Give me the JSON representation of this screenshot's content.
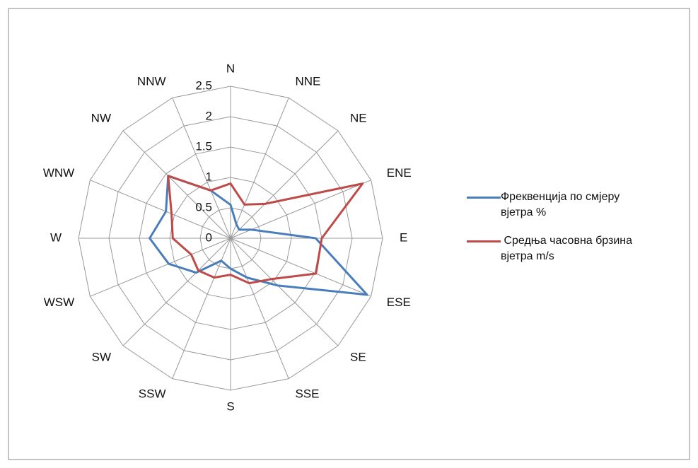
{
  "chart_data": {
    "type": "radar",
    "categories": [
      "N",
      "NNE",
      "NE",
      "ENE",
      "E",
      "ESE",
      "SE",
      "SSE",
      "S",
      "SSW",
      "SW",
      "WSW",
      "W",
      "WNW",
      "NW",
      "NNW"
    ],
    "series": [
      {
        "name": "Фреквенција по смјеру вјетра %",
        "color": "#4a7ebb",
        "values": [
          0.55,
          0.25,
          0.2,
          0.37,
          1.4,
          2.43,
          1.1,
          0.7,
          0.5,
          0.4,
          0.8,
          1.1,
          1.33,
          1.15,
          1.45,
          0.85
        ]
      },
      {
        "name": " Средња часовна брзина вјетра m/s",
        "color": "#be4b48",
        "values": [
          0.9,
          0.6,
          0.8,
          2.35,
          1.5,
          1.52,
          0.95,
          0.8,
          0.6,
          0.7,
          0.75,
          0.7,
          0.95,
          1.05,
          1.45,
          0.85
        ]
      }
    ],
    "ylim": [
      0,
      2.5
    ],
    "yticks": [
      0,
      0.5,
      1,
      1.5,
      2,
      2.5
    ],
    "grid": true,
    "legend": "right"
  }
}
